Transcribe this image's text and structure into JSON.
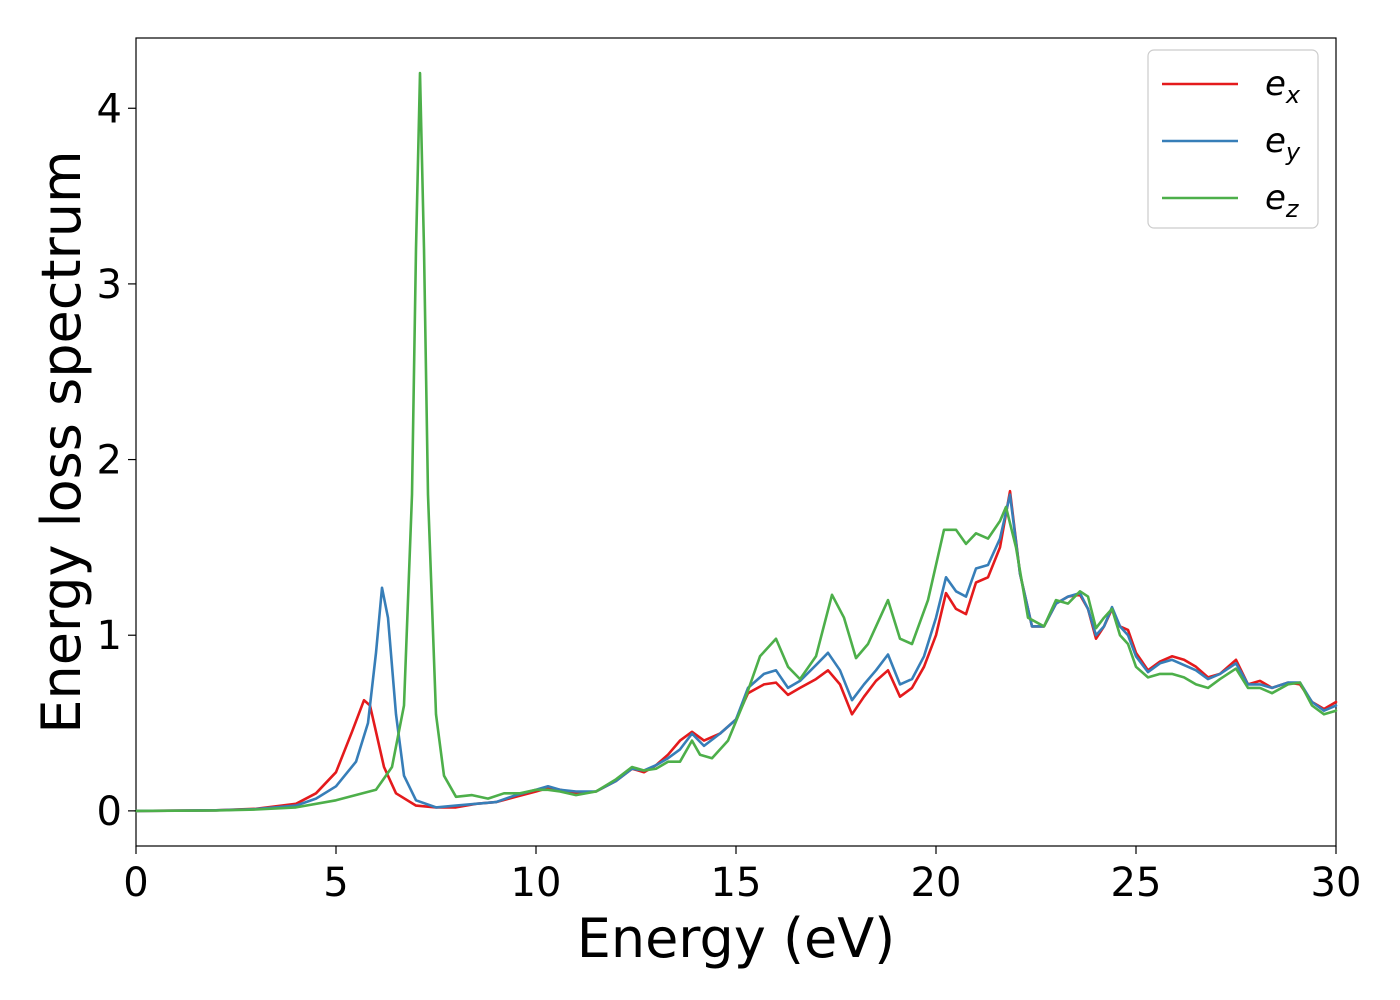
{
  "chart_data": {
    "type": "line",
    "xlabel": "Energy (eV)",
    "ylabel": "Energy loss spectrum",
    "xlim": [
      0,
      30
    ],
    "ylim": [
      -0.2,
      4.4
    ],
    "xticks": [
      0,
      5,
      10,
      15,
      20,
      25,
      30
    ],
    "yticks": [
      0,
      1,
      2,
      3,
      4
    ],
    "grid": false,
    "legend_position": "top-right",
    "series": [
      {
        "name": "e_x",
        "label_main": "e",
        "label_sub": "x",
        "color": "#e41a1c",
        "points": [
          [
            0,
            0
          ],
          [
            2,
            0.003
          ],
          [
            3,
            0.012
          ],
          [
            4,
            0.04
          ],
          [
            4.5,
            0.1
          ],
          [
            5,
            0.22
          ],
          [
            5.4,
            0.45
          ],
          [
            5.7,
            0.63
          ],
          [
            5.85,
            0.6
          ],
          [
            6,
            0.45
          ],
          [
            6.2,
            0.25
          ],
          [
            6.5,
            0.1
          ],
          [
            7,
            0.03
          ],
          [
            7.5,
            0.02
          ],
          [
            8,
            0.02
          ],
          [
            8.5,
            0.04
          ],
          [
            9,
            0.05
          ],
          [
            9.5,
            0.08
          ],
          [
            10,
            0.11
          ],
          [
            10.3,
            0.13
          ],
          [
            10.6,
            0.12
          ],
          [
            11,
            0.1
          ],
          [
            11.5,
            0.11
          ],
          [
            12,
            0.17
          ],
          [
            12.4,
            0.24
          ],
          [
            12.7,
            0.22
          ],
          [
            13,
            0.26
          ],
          [
            13.3,
            0.32
          ],
          [
            13.6,
            0.4
          ],
          [
            13.9,
            0.45
          ],
          [
            14.2,
            0.4
          ],
          [
            14.6,
            0.44
          ],
          [
            15,
            0.52
          ],
          [
            15.3,
            0.67
          ],
          [
            15.7,
            0.72
          ],
          [
            16,
            0.73
          ],
          [
            16.3,
            0.66
          ],
          [
            16.6,
            0.7
          ],
          [
            17,
            0.75
          ],
          [
            17.3,
            0.8
          ],
          [
            17.6,
            0.72
          ],
          [
            17.9,
            0.55
          ],
          [
            18.2,
            0.65
          ],
          [
            18.5,
            0.74
          ],
          [
            18.8,
            0.8
          ],
          [
            19.1,
            0.65
          ],
          [
            19.4,
            0.7
          ],
          [
            19.7,
            0.82
          ],
          [
            20,
            1.0
          ],
          [
            20.25,
            1.24
          ],
          [
            20.5,
            1.15
          ],
          [
            20.75,
            1.12
          ],
          [
            21,
            1.3
          ],
          [
            21.3,
            1.33
          ],
          [
            21.6,
            1.5
          ],
          [
            21.85,
            1.82
          ],
          [
            22.1,
            1.35
          ],
          [
            22.4,
            1.05
          ],
          [
            22.7,
            1.05
          ],
          [
            23,
            1.18
          ],
          [
            23.3,
            1.22
          ],
          [
            23.6,
            1.23
          ],
          [
            23.8,
            1.15
          ],
          [
            24,
            0.98
          ],
          [
            24.2,
            1.05
          ],
          [
            24.4,
            1.15
          ],
          [
            24.6,
            1.05
          ],
          [
            24.8,
            1.03
          ],
          [
            25,
            0.9
          ],
          [
            25.3,
            0.8
          ],
          [
            25.6,
            0.85
          ],
          [
            25.9,
            0.88
          ],
          [
            26.2,
            0.86
          ],
          [
            26.5,
            0.82
          ],
          [
            26.8,
            0.76
          ],
          [
            27.1,
            0.78
          ],
          [
            27.5,
            0.86
          ],
          [
            27.8,
            0.72
          ],
          [
            28.1,
            0.74
          ],
          [
            28.4,
            0.7
          ],
          [
            28.8,
            0.73
          ],
          [
            29.1,
            0.72
          ],
          [
            29.4,
            0.62
          ],
          [
            29.7,
            0.58
          ],
          [
            30,
            0.62
          ]
        ]
      },
      {
        "name": "e_y",
        "label_main": "e",
        "label_sub": "y",
        "color": "#377eb8",
        "points": [
          [
            0,
            0
          ],
          [
            2,
            0.003
          ],
          [
            3,
            0.01
          ],
          [
            4,
            0.03
          ],
          [
            4.5,
            0.07
          ],
          [
            5,
            0.14
          ],
          [
            5.5,
            0.28
          ],
          [
            5.8,
            0.5
          ],
          [
            6,
            0.9
          ],
          [
            6.15,
            1.27
          ],
          [
            6.3,
            1.1
          ],
          [
            6.5,
            0.55
          ],
          [
            6.7,
            0.2
          ],
          [
            7,
            0.06
          ],
          [
            7.5,
            0.02
          ],
          [
            8,
            0.03
          ],
          [
            8.5,
            0.04
          ],
          [
            9,
            0.05
          ],
          [
            9.5,
            0.09
          ],
          [
            10,
            0.12
          ],
          [
            10.3,
            0.14
          ],
          [
            10.6,
            0.12
          ],
          [
            11,
            0.11
          ],
          [
            11.5,
            0.11
          ],
          [
            12,
            0.17
          ],
          [
            12.4,
            0.24
          ],
          [
            12.7,
            0.23
          ],
          [
            13,
            0.26
          ],
          [
            13.3,
            0.3
          ],
          [
            13.6,
            0.35
          ],
          [
            13.9,
            0.44
          ],
          [
            14.2,
            0.37
          ],
          [
            14.6,
            0.44
          ],
          [
            15,
            0.52
          ],
          [
            15.3,
            0.7
          ],
          [
            15.7,
            0.78
          ],
          [
            16,
            0.8
          ],
          [
            16.3,
            0.7
          ],
          [
            16.6,
            0.74
          ],
          [
            17,
            0.83
          ],
          [
            17.3,
            0.9
          ],
          [
            17.6,
            0.8
          ],
          [
            17.9,
            0.63
          ],
          [
            18.2,
            0.72
          ],
          [
            18.5,
            0.8
          ],
          [
            18.8,
            0.89
          ],
          [
            19.1,
            0.72
          ],
          [
            19.4,
            0.75
          ],
          [
            19.7,
            0.88
          ],
          [
            20,
            1.1
          ],
          [
            20.25,
            1.33
          ],
          [
            20.5,
            1.25
          ],
          [
            20.75,
            1.22
          ],
          [
            21,
            1.38
          ],
          [
            21.3,
            1.4
          ],
          [
            21.6,
            1.55
          ],
          [
            21.85,
            1.8
          ],
          [
            22.1,
            1.35
          ],
          [
            22.4,
            1.05
          ],
          [
            22.7,
            1.05
          ],
          [
            23,
            1.18
          ],
          [
            23.3,
            1.22
          ],
          [
            23.6,
            1.24
          ],
          [
            23.8,
            1.15
          ],
          [
            24,
            1.0
          ],
          [
            24.2,
            1.05
          ],
          [
            24.4,
            1.16
          ],
          [
            24.6,
            1.05
          ],
          [
            24.8,
            1.0
          ],
          [
            25,
            0.88
          ],
          [
            25.3,
            0.79
          ],
          [
            25.6,
            0.84
          ],
          [
            25.9,
            0.86
          ],
          [
            26.2,
            0.83
          ],
          [
            26.5,
            0.8
          ],
          [
            26.8,
            0.75
          ],
          [
            27.1,
            0.78
          ],
          [
            27.5,
            0.84
          ],
          [
            27.8,
            0.72
          ],
          [
            28.1,
            0.72
          ],
          [
            28.4,
            0.7
          ],
          [
            28.8,
            0.73
          ],
          [
            29.1,
            0.73
          ],
          [
            29.4,
            0.62
          ],
          [
            29.7,
            0.57
          ],
          [
            30,
            0.6
          ]
        ]
      },
      {
        "name": "e_z",
        "label_main": "e",
        "label_sub": "z",
        "color": "#4daf4a",
        "points": [
          [
            0,
            0
          ],
          [
            2,
            0.002
          ],
          [
            3,
            0.008
          ],
          [
            4,
            0.02
          ],
          [
            5,
            0.06
          ],
          [
            6,
            0.12
          ],
          [
            6.4,
            0.25
          ],
          [
            6.7,
            0.6
          ],
          [
            6.9,
            1.8
          ],
          [
            7.0,
            3.2
          ],
          [
            7.1,
            4.2
          ],
          [
            7.2,
            3.2
          ],
          [
            7.3,
            1.8
          ],
          [
            7.5,
            0.55
          ],
          [
            7.7,
            0.2
          ],
          [
            8,
            0.08
          ],
          [
            8.4,
            0.09
          ],
          [
            8.8,
            0.07
          ],
          [
            9.2,
            0.1
          ],
          [
            9.6,
            0.1
          ],
          [
            10,
            0.12
          ],
          [
            10.3,
            0.12
          ],
          [
            10.6,
            0.11
          ],
          [
            11,
            0.09
          ],
          [
            11.5,
            0.11
          ],
          [
            12,
            0.18
          ],
          [
            12.4,
            0.25
          ],
          [
            12.7,
            0.23
          ],
          [
            13,
            0.24
          ],
          [
            13.3,
            0.28
          ],
          [
            13.6,
            0.28
          ],
          [
            13.9,
            0.4
          ],
          [
            14.1,
            0.32
          ],
          [
            14.4,
            0.3
          ],
          [
            14.8,
            0.4
          ],
          [
            15.2,
            0.62
          ],
          [
            15.6,
            0.88
          ],
          [
            16,
            0.98
          ],
          [
            16.3,
            0.82
          ],
          [
            16.6,
            0.75
          ],
          [
            17,
            0.88
          ],
          [
            17.4,
            1.23
          ],
          [
            17.7,
            1.1
          ],
          [
            18,
            0.87
          ],
          [
            18.3,
            0.95
          ],
          [
            18.6,
            1.1
          ],
          [
            18.8,
            1.2
          ],
          [
            19.1,
            0.98
          ],
          [
            19.4,
            0.95
          ],
          [
            19.8,
            1.2
          ],
          [
            20.2,
            1.6
          ],
          [
            20.5,
            1.6
          ],
          [
            20.75,
            1.52
          ],
          [
            21,
            1.58
          ],
          [
            21.3,
            1.55
          ],
          [
            21.6,
            1.65
          ],
          [
            21.75,
            1.73
          ],
          [
            22,
            1.5
          ],
          [
            22.3,
            1.1
          ],
          [
            22.7,
            1.05
          ],
          [
            23,
            1.2
          ],
          [
            23.3,
            1.18
          ],
          [
            23.6,
            1.25
          ],
          [
            23.8,
            1.22
          ],
          [
            24,
            1.04
          ],
          [
            24.2,
            1.1
          ],
          [
            24.4,
            1.15
          ],
          [
            24.6,
            1.0
          ],
          [
            24.8,
            0.95
          ],
          [
            25,
            0.82
          ],
          [
            25.3,
            0.76
          ],
          [
            25.6,
            0.78
          ],
          [
            25.9,
            0.78
          ],
          [
            26.2,
            0.76
          ],
          [
            26.5,
            0.72
          ],
          [
            26.8,
            0.7
          ],
          [
            27.1,
            0.75
          ],
          [
            27.5,
            0.81
          ],
          [
            27.8,
            0.7
          ],
          [
            28.1,
            0.7
          ],
          [
            28.4,
            0.67
          ],
          [
            28.8,
            0.72
          ],
          [
            29.1,
            0.73
          ],
          [
            29.4,
            0.6
          ],
          [
            29.7,
            0.55
          ],
          [
            30,
            0.57
          ]
        ]
      }
    ]
  }
}
